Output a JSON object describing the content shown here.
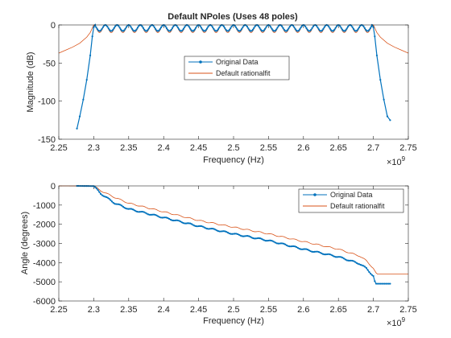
{
  "chart_data": [
    {
      "type": "line",
      "title": "Default NPoles (Uses 48 poles)",
      "xlabel": "Frequency (Hz)",
      "ylabel": "Magnitude (dB)",
      "xlim": [
        2.25,
        2.75
      ],
      "ylim": [
        -150,
        0
      ],
      "x_exponent_label": "×10",
      "x_exponent_power": "9",
      "xticks": [
        "2.25",
        "2.3",
        "2.35",
        "2.4",
        "2.45",
        "2.5",
        "2.55",
        "2.6",
        "2.65",
        "2.7",
        "2.75"
      ],
      "yticks": [
        "0",
        "-50",
        "-100",
        "-150"
      ],
      "legend_position": "center",
      "series": [
        {
          "name": "Original Data",
          "color": "#0072BD",
          "marker": "dot",
          "x": [
            2.276,
            2.28,
            2.285,
            2.29,
            2.295,
            2.298,
            2.3,
            2.302
          ],
          "y": [
            -136,
            -120,
            -98,
            -72,
            -40,
            -15,
            -3,
            0
          ]
        },
        {
          "name": "Default rationalfit",
          "color": "#D95319",
          "marker": "none",
          "x": [
            2.25,
            2.26,
            2.27,
            2.28,
            2.29,
            2.295,
            2.3
          ],
          "y": [
            -37,
            -33,
            -29,
            -24,
            -16,
            -10,
            0
          ]
        }
      ],
      "passband": {
        "x_start": 2.3,
        "x_end": 2.7,
        "ripple_count": 24,
        "original_ripple_db": 8,
        "rationalfit_ripple_db": 10
      }
    },
    {
      "type": "line",
      "title": "",
      "xlabel": "Frequency (Hz)",
      "ylabel": "Angle (degrees)",
      "xlim": [
        2.25,
        2.75
      ],
      "ylim": [
        -6000,
        0
      ],
      "x_exponent_label": "×10",
      "x_exponent_power": "9",
      "xticks": [
        "2.25",
        "2.3",
        "2.35",
        "2.4",
        "2.45",
        "2.5",
        "2.55",
        "2.6",
        "2.65",
        "2.7",
        "2.75"
      ],
      "yticks": [
        "0",
        "-1000",
        "-2000",
        "-3000",
        "-4000",
        "-5000",
        "-6000"
      ],
      "legend_position": "top-right",
      "series": [
        {
          "name": "Original Data",
          "color": "#0072BD",
          "marker": "dot",
          "x": [
            2.276,
            2.3,
            2.31,
            2.33,
            2.35,
            2.4,
            2.45,
            2.5,
            2.55,
            2.6,
            2.65,
            2.68,
            2.69,
            2.7,
            2.703,
            2.724
          ],
          "y": [
            0,
            -10,
            -400,
            -900,
            -1200,
            -1650,
            -2100,
            -2500,
            -2850,
            -3300,
            -3700,
            -4050,
            -4300,
            -4700,
            -5100,
            -5100
          ]
        },
        {
          "name": "Default rationalfit",
          "color": "#D95319",
          "marker": "none",
          "x": [
            2.25,
            2.3,
            2.31,
            2.33,
            2.35,
            2.4,
            2.45,
            2.5,
            2.55,
            2.6,
            2.65,
            2.68,
            2.69,
            2.7,
            2.705,
            2.75
          ],
          "y": [
            0,
            -5,
            -250,
            -600,
            -900,
            -1350,
            -1800,
            -2150,
            -2500,
            -2900,
            -3300,
            -3650,
            -3900,
            -4300,
            -4600,
            -4600
          ]
        }
      ]
    }
  ]
}
